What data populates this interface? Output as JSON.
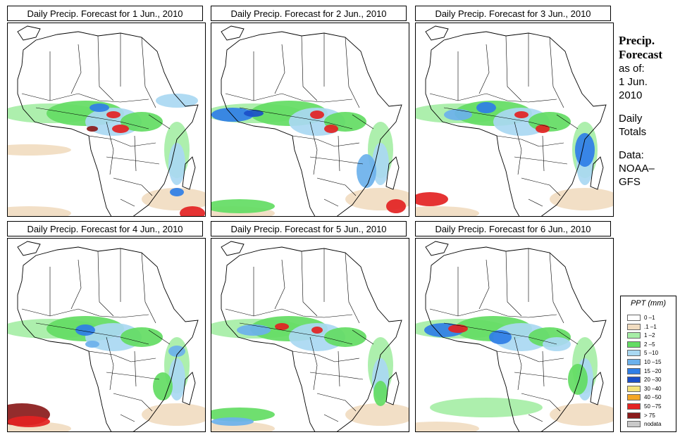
{
  "panels": [
    {
      "title": "Daily Precip. Forecast for  1 Jun., 2010",
      "variant": 1
    },
    {
      "title": "Daily Precip. Forecast for  2 Jun., 2010",
      "variant": 2
    },
    {
      "title": "Daily Precip. Forecast for  3 Jun., 2010",
      "variant": 3
    },
    {
      "title": "Daily Precip. Forecast for  4 Jun., 2010",
      "variant": 4
    },
    {
      "title": "Daily Precip. Forecast for  5 Jun., 2010",
      "variant": 5
    },
    {
      "title": "Daily Precip. Forecast for  6 Jun., 2010",
      "variant": 6
    }
  ],
  "sidebar": {
    "title_line1": "Precip.",
    "title_line2": "Forecast",
    "asof": "as of:",
    "date_line1": "1 Jun.",
    "date_line2": "2010",
    "daily1": "Daily",
    "daily2": "Totals",
    "data1": "Data:",
    "data2": "NOAA–",
    "data3": "GFS"
  },
  "legend": {
    "title": "PPT (mm)",
    "items": [
      {
        "label": "0 –1",
        "color": "#ffffff"
      },
      {
        "label": ".1 –1",
        "color": "#f1dcc0"
      },
      {
        "label": "1 –2",
        "color": "#a6eea6"
      },
      {
        "label": "2 –5",
        "color": "#63dc63"
      },
      {
        "label": "5 –10",
        "color": "#a9d8f2"
      },
      {
        "label": "10 –15",
        "color": "#6bb1ec"
      },
      {
        "label": "15 –20",
        "color": "#2f7ee6"
      },
      {
        "label": "20 –30",
        "color": "#1b4fc8"
      },
      {
        "label": "30 –40",
        "color": "#f4e27a"
      },
      {
        "label": "40 –50",
        "color": "#f5a623"
      },
      {
        "label": "50 –75",
        "color": "#e32222"
      },
      {
        "label": "> 75",
        "color": "#8a1a1a"
      },
      {
        "label": "nodata",
        "color": "#c9c9c9"
      }
    ]
  }
}
